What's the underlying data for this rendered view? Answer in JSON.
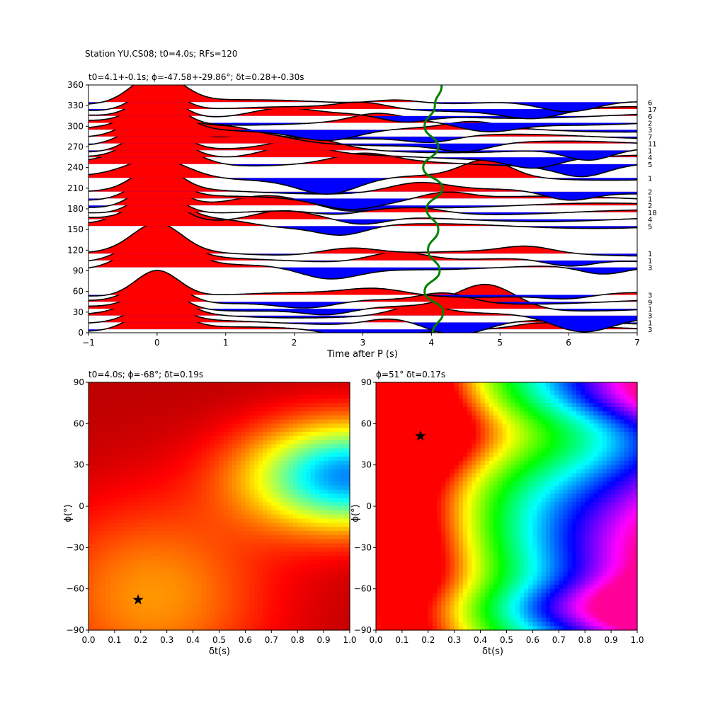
{
  "figure": {
    "suptitle": "Station YU.CS08; t0=4.0s; RFs=120"
  },
  "chart_data": [
    {
      "type": "line",
      "title": "t0=4.1+-0.1s; ϕ=-47.58+-29.86°; δt=0.28+-0.30s",
      "xlabel": "Time after P (s)",
      "ylabel": "",
      "xlim": [
        -1,
        7
      ],
      "ylim": [
        0,
        360
      ],
      "xticks": [
        "−1",
        "0",
        "1",
        "2",
        "3",
        "4",
        "5",
        "6",
        "7"
      ],
      "yticks": [
        "0",
        "30",
        "60",
        "90",
        "120",
        "150",
        "180",
        "210",
        "240",
        "270",
        "300",
        "330",
        "360"
      ],
      "fill_colors": {
        "positive": "#ff0000",
        "negative": "#0000ff"
      },
      "trace_color": "#000000",
      "moveout_curve_color": "#008000",
      "moveout_curve": {
        "baz": [
          0,
          30,
          60,
          90,
          120,
          150,
          180,
          210,
          240,
          270,
          300,
          330,
          360
        ],
        "t": [
          4.02,
          4.17,
          3.9,
          4.12,
          3.95,
          4.1,
          3.93,
          4.16,
          3.88,
          4.1,
          3.9,
          4.05,
          4.15
        ]
      },
      "traces": [
        {
          "baz": 5,
          "count": "3",
          "p0": 0.75,
          "w0": 0.5,
          "p1": -0.3,
          "t1": 3.0,
          "p2": 0.15,
          "t2": 5.6
        },
        {
          "baz": 15,
          "count": "1",
          "p0": 0.7,
          "w0": 0.45,
          "p1": -0.45,
          "t1": 4.4,
          "p2": 0.2,
          "t2": 3.4
        },
        {
          "baz": 25,
          "count": "3",
          "p0": 0.8,
          "w0": 0.5,
          "p1": -0.5,
          "t1": 6.2,
          "p2": 0.3,
          "t2": 3.8
        },
        {
          "baz": 35,
          "count": "1",
          "p0": 0.75,
          "w0": 0.45,
          "p1": 0.8,
          "t1": 4.8,
          "p2": -0.2,
          "t2": 2.5
        },
        {
          "baz": 45,
          "count": "9",
          "p0": 0.85,
          "w0": 0.5,
          "p1": -0.25,
          "t1": 2.2,
          "p2": 0.3,
          "t2": 4.2
        },
        {
          "baz": 55,
          "count": "3",
          "p0": 0.9,
          "w0": 0.45,
          "p1": 0.2,
          "t1": 3.2,
          "p2": -0.15,
          "t2": 6.0
        },
        {
          "baz": 95,
          "count": "3",
          "p0": 1.0,
          "w0": 0.6,
          "p1": -0.4,
          "t1": 2.5,
          "p2": -0.3,
          "t2": 6.5
        },
        {
          "baz": 105,
          "count": "1",
          "p0": 0.9,
          "w0": 0.55,
          "p1": 0.35,
          "t1": 3.5,
          "p2": -0.25,
          "t2": 6.0
        },
        {
          "baz": 115,
          "count": "1",
          "p0": 0.95,
          "w0": 0.5,
          "p1": 0.25,
          "t1": 2.8,
          "p2": 0.2,
          "t2": 5.4
        },
        {
          "baz": 155,
          "count": "5",
          "p0": 1.0,
          "w0": 0.55,
          "p1": 0.25,
          "t1": 1.0,
          "p2": -0.3,
          "t2": 2.7
        },
        {
          "baz": 165,
          "count": "4",
          "p0": 0.85,
          "w0": 0.45,
          "p1": 0.3,
          "t1": 1.8,
          "p2": -0.25,
          "t2": 3.0
        },
        {
          "baz": 175,
          "count": "18",
          "p0": 0.8,
          "w0": 0.45,
          "p1": 0.2,
          "t1": 3.7,
          "p2": -0.15,
          "t2": 2.6
        },
        {
          "baz": 185,
          "count": "2",
          "p0": 0.8,
          "w0": 0.45,
          "p1": 0.25,
          "t1": 1.6,
          "p2": -0.2,
          "t2": 2.8
        },
        {
          "baz": 195,
          "count": "1",
          "p0": 0.8,
          "w0": 0.45,
          "p1": -0.3,
          "t1": 2.8,
          "p2": 0.25,
          "t2": 4.2
        },
        {
          "baz": 205,
          "count": "2",
          "p0": 0.8,
          "w0": 0.45,
          "p1": 0.3,
          "t1": 3.8,
          "p2": -0.3,
          "t2": 6.0
        },
        {
          "baz": 225,
          "count": "1",
          "p0": 0.6,
          "w0": 0.6,
          "p1": -0.5,
          "t1": 2.5,
          "p2": 0.55,
          "t2": 4.8
        },
        {
          "baz": 245,
          "count": "5",
          "p0": 0.9,
          "w0": 0.65,
          "p1": 0.3,
          "t1": 3.0,
          "p2": -0.35,
          "t2": 6.2
        },
        {
          "baz": 255,
          "count": "4",
          "p0": 0.95,
          "w0": 0.55,
          "p1": 0.35,
          "t1": 2.0,
          "p2": -0.3,
          "t2": 5.5
        },
        {
          "baz": 265,
          "count": "1",
          "p0": 0.9,
          "w0": 0.5,
          "p1": 0.35,
          "t1": 2.2,
          "p2": -0.4,
          "t2": 6.3
        },
        {
          "baz": 275,
          "count": "11",
          "p0": 0.85,
          "w0": 0.55,
          "p1": 0.25,
          "t1": 1.5,
          "p2": -0.25,
          "t2": 4.5
        },
        {
          "baz": 285,
          "count": "7",
          "p0": 0.9,
          "w0": 0.5,
          "p1": 0.3,
          "t1": 1.0,
          "p2": -0.2,
          "t2": 4.0
        },
        {
          "baz": 295,
          "count": "3",
          "p0": 0.85,
          "w0": 0.5,
          "p1": -0.3,
          "t1": 2.5,
          "p2": 0.2,
          "t2": 4.6
        },
        {
          "baz": 305,
          "count": "2",
          "p0": 0.85,
          "w0": 0.45,
          "p1": -0.3,
          "t1": 4.8,
          "p2": 0.25,
          "t2": 3.2
        },
        {
          "baz": 315,
          "count": "6",
          "p0": 0.8,
          "w0": 0.45,
          "p1": 0.25,
          "t1": 1.8,
          "p2": -0.25,
          "t2": 3.6
        },
        {
          "baz": 325,
          "count": "17",
          "p0": 0.8,
          "w0": 0.45,
          "p1": -0.3,
          "t1": 5.5,
          "p2": 0.2,
          "t2": 3.0
        },
        {
          "baz": 335,
          "count": "6",
          "p0": 1.0,
          "w0": 0.5,
          "p1": -0.4,
          "t1": 6.0,
          "p2": 0.15,
          "t2": 3.5
        }
      ]
    },
    {
      "type": "heatmap",
      "title": "t0=4.0s; ϕ=-68°; δt=0.19s",
      "xlabel": "δt(s)",
      "ylabel": "ϕ(°)",
      "xlim": [
        0.0,
        1.0
      ],
      "ylim": [
        -90,
        90
      ],
      "xticks": [
        "0.0",
        "0.1",
        "0.2",
        "0.3",
        "0.4",
        "0.5",
        "0.6",
        "0.7",
        "0.8",
        "0.9",
        "1.0"
      ],
      "yticks": [
        "−90",
        "−60",
        "−30",
        "0",
        "30",
        "60",
        "90"
      ],
      "colormap": "jet",
      "best": {
        "dt": 0.19,
        "phi": -68
      }
    },
    {
      "type": "heatmap",
      "title": "ϕ=51° δt=0.17s",
      "xlabel": "δt(s)",
      "ylabel": "ϕ(°)",
      "xlim": [
        0.0,
        1.0
      ],
      "ylim": [
        -90,
        90
      ],
      "xticks": [
        "0.0",
        "0.1",
        "0.2",
        "0.3",
        "0.4",
        "0.5",
        "0.6",
        "0.7",
        "0.8",
        "0.9",
        "1.0"
      ],
      "yticks": [
        "−90",
        "−60",
        "−30",
        "0",
        "30",
        "60",
        "90"
      ],
      "colormap": "hsv",
      "best": {
        "dt": 0.17,
        "phi": 51
      }
    }
  ]
}
